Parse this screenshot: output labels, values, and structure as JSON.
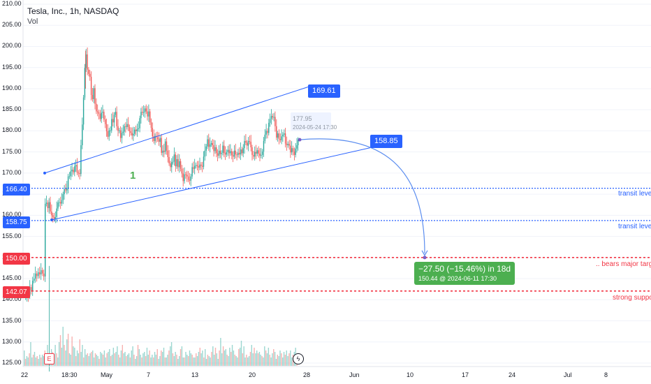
{
  "header": {
    "title": "Tesla, Inc., 1h, NASDAQ",
    "sub": "Vol"
  },
  "y_axis": {
    "labels": [
      "210.00",
      "205.00",
      "200.00",
      "195.00",
      "190.00",
      "185.00",
      "180.00",
      "175.00",
      "170.00",
      "165.00",
      "160.00",
      "155.00",
      "150.00",
      "145.00",
      "140.00",
      "135.00",
      "130.00",
      "125.00"
    ]
  },
  "price_tags": [
    {
      "text": "166.40",
      "color": "#2962ff"
    },
    {
      "text": "158.75",
      "color": "#2962ff"
    },
    {
      "text": "150.00",
      "color": "#f23645"
    },
    {
      "text": "142.07",
      "color": "#f23645"
    }
  ],
  "channel_tags": [
    {
      "text": "169.61"
    },
    {
      "text": "158.85"
    }
  ],
  "annotations": {
    "transit1": "transit level",
    "transit2": "transit level",
    "bears": ".. bears major target",
    "support": "strong support",
    "wave_label": "1"
  },
  "tooltip": {
    "price": "177.95",
    "time": "2024-05-24 17:30"
  },
  "projection": {
    "line1": "−27.50 (−15.46%) in 18d",
    "line2": "150.44 @ 2024-06-11  17:30"
  },
  "markers": {
    "earnings": "E"
  },
  "x_axis": {
    "labels": [
      "22",
      "18:30",
      "May",
      "7",
      "13",
      "20",
      "28",
      "Jun",
      "10",
      "17",
      "24",
      "Jul",
      "8"
    ]
  },
  "colors": {
    "up": "#26a69a",
    "down": "#ef5350",
    "accent": "#2962ff",
    "red": "#f23645",
    "green": "#4caf50"
  },
  "chart_data": {
    "type": "candlestick",
    "ylim": [
      125,
      210
    ],
    "close_path": [
      [
        64.0,
        162.7
      ],
      [
        65.8,
        163.0
      ],
      [
        67.7,
        161.7
      ],
      [
        69.5,
        163.1
      ],
      [
        71.3,
        160.9
      ],
      [
        73.2,
        160.0
      ],
      [
        75.0,
        159.6
      ],
      [
        76.8,
        159.1
      ],
      [
        78.6,
        159.6
      ],
      [
        80.5,
        161.6
      ],
      [
        82.3,
        163.0
      ],
      [
        84.1,
        163.1
      ],
      [
        86.0,
        162.8
      ],
      [
        87.8,
        163.6
      ],
      [
        89.6,
        165.0
      ],
      [
        91.4,
        166.2
      ],
      [
        93.3,
        165.9
      ],
      [
        95.1,
        166.5
      ],
      [
        96.9,
        169.2
      ],
      [
        98.8,
        169.3
      ],
      [
        100.6,
        170.4
      ],
      [
        102.4,
        170.8
      ],
      [
        104.3,
        170.2
      ],
      [
        106.1,
        171.6
      ],
      [
        107.9,
        171.9
      ],
      [
        109.7,
        170.1
      ],
      [
        111.6,
        170.0
      ],
      [
        113.4,
        169.8
      ],
      [
        115.2,
        176.6
      ],
      [
        117.1,
        181.5
      ],
      [
        118.9,
        187.9
      ],
      [
        120.7,
        194.9
      ],
      [
        122.5,
        198.1
      ],
      [
        124.4,
        194.5
      ],
      [
        126.2,
        193.5
      ],
      [
        128.0,
        192.8
      ],
      [
        129.9,
        188.5
      ],
      [
        131.7,
        187.5
      ],
      [
        133.5,
        190.1
      ],
      [
        135.3,
        186.4
      ],
      [
        137.2,
        184.6
      ],
      [
        139.0,
        184.4
      ],
      [
        140.8,
        184.0
      ],
      [
        142.7,
        182.8
      ],
      [
        144.5,
        184.3
      ],
      [
        146.3,
        184.5
      ],
      [
        148.1,
        182.7
      ],
      [
        150.0,
        181.6
      ],
      [
        151.8,
        179.9
      ],
      [
        153.6,
        178.6
      ],
      [
        155.5,
        180.1
      ],
      [
        157.3,
        180.1
      ],
      [
        159.1,
        182.8
      ],
      [
        161.0,
        182.0
      ],
      [
        162.8,
        183.8
      ],
      [
        164.6,
        184.5
      ],
      [
        166.4,
        181.1
      ],
      [
        168.3,
        180.0
      ],
      [
        170.1,
        180.1
      ],
      [
        171.9,
        178.3
      ],
      [
        173.8,
        179.5
      ],
      [
        175.6,
        179.8
      ],
      [
        177.4,
        181.1
      ],
      [
        179.2,
        180.9
      ],
      [
        181.1,
        181.6
      ],
      [
        182.9,
        180.9
      ],
      [
        184.7,
        179.9
      ],
      [
        186.6,
        179.5
      ],
      [
        188.4,
        178.9
      ],
      [
        190.2,
        179.3
      ],
      [
        192.0,
        180.3
      ],
      [
        193.9,
        179.9
      ],
      [
        195.7,
        180.4
      ],
      [
        197.5,
        180.6
      ],
      [
        199.4,
        183.0
      ],
      [
        201.2,
        184.5
      ],
      [
        203.0,
        184.3
      ],
      [
        204.8,
        184.4
      ],
      [
        206.7,
        185.3
      ],
      [
        208.5,
        184.6
      ],
      [
        210.3,
        183.4
      ],
      [
        212.2,
        184.6
      ],
      [
        214.0,
        182.0
      ],
      [
        215.8,
        180.7
      ],
      [
        217.6,
        178.7
      ],
      [
        219.5,
        177.6
      ],
      [
        221.3,
        178.8
      ],
      [
        223.1,
        178.5
      ],
      [
        225.0,
        178.0
      ],
      [
        226.8,
        177.4
      ],
      [
        228.6,
        178.3
      ],
      [
        230.5,
        174.8
      ],
      [
        232.3,
        175.3
      ],
      [
        234.1,
        175.0
      ],
      [
        235.9,
        177.5
      ],
      [
        237.8,
        175.3
      ],
      [
        239.6,
        173.8
      ],
      [
        241.4,
        172.3
      ],
      [
        243.3,
        171.4
      ],
      [
        245.1,
        172.6
      ],
      [
        246.9,
        172.7
      ],
      [
        248.7,
        174.4
      ],
      [
        250.6,
        171.6
      ],
      [
        252.4,
        173.3
      ],
      [
        254.2,
        171.4
      ],
      [
        256.1,
        172.8
      ],
      [
        257.9,
        171.0
      ],
      [
        259.7,
        169.9
      ],
      [
        261.5,
        168.1
      ],
      [
        263.4,
        169.7
      ],
      [
        265.2,
        169.6
      ],
      [
        267.0,
        169.2
      ],
      [
        268.9,
        168.4
      ],
      [
        270.7,
        168.2
      ],
      [
        272.5,
        169.2
      ],
      [
        274.4,
        171.4
      ],
      [
        276.2,
        171.0
      ],
      [
        278.0,
        171.7
      ],
      [
        279.8,
        171.9
      ],
      [
        281.7,
        171.6
      ],
      [
        283.5,
        171.3
      ],
      [
        285.3,
        172.0
      ],
      [
        287.2,
        171.7
      ],
      [
        289.0,
        171.5
      ],
      [
        290.8,
        173.9
      ],
      [
        292.6,
        175.3
      ],
      [
        294.5,
        176.3
      ],
      [
        296.3,
        178.0
      ],
      [
        298.1,
        176.2
      ],
      [
        300.0,
        176.8
      ],
      [
        301.8,
        177.1
      ],
      [
        303.6,
        176.6
      ],
      [
        305.4,
        175.2
      ],
      [
        307.3,
        176.1
      ],
      [
        309.1,
        174.7
      ],
      [
        310.9,
        174.1
      ],
      [
        312.8,
        175.3
      ],
      [
        314.6,
        174.5
      ],
      [
        316.4,
        174.8
      ],
      [
        318.3,
        176.5
      ],
      [
        320.1,
        174.7
      ],
      [
        321.9,
        174.4
      ],
      [
        323.7,
        175.0
      ],
      [
        325.6,
        175.5
      ],
      [
        327.4,
        174.7
      ],
      [
        329.2,
        175.2
      ],
      [
        331.1,
        174.2
      ],
      [
        332.9,
        173.9
      ],
      [
        334.7,
        175.3
      ],
      [
        336.5,
        174.4
      ],
      [
        338.4,
        174.3
      ],
      [
        340.2,
        174.8
      ],
      [
        342.0,
        174.4
      ],
      [
        343.9,
        175.6
      ],
      [
        345.7,
        174.7
      ],
      [
        347.5,
        175.9
      ],
      [
        349.3,
        177.6
      ],
      [
        351.2,
        177.2
      ],
      [
        353.0,
        176.5
      ],
      [
        354.8,
        177.6
      ],
      [
        356.7,
        177.4
      ],
      [
        358.5,
        176.1
      ],
      [
        360.3,
        174.3
      ],
      [
        362.2,
        173.9
      ],
      [
        364.0,
        175.0
      ],
      [
        365.8,
        174.6
      ],
      [
        367.6,
        175.4
      ],
      [
        369.5,
        174.6
      ],
      [
        371.3,
        174.1
      ],
      [
        373.1,
        174.3
      ],
      [
        375.0,
        175.1
      ],
      [
        376.8,
        177.6
      ],
      [
        378.6,
        179.1
      ],
      [
        380.4,
        180.0
      ],
      [
        382.3,
        179.5
      ],
      [
        384.1,
        181.9
      ],
      [
        385.9,
        182.8
      ],
      [
        387.8,
        183.5
      ],
      [
        389.6,
        183.2
      ],
      [
        391.4,
        183.3
      ],
      [
        393.2,
        181.1
      ],
      [
        395.1,
        178.4
      ],
      [
        396.9,
        179.4
      ],
      [
        398.7,
        178.1
      ],
      [
        400.6,
        177.8
      ],
      [
        402.4,
        178.7
      ],
      [
        404.2,
        179.1
      ],
      [
        406.1,
        179.4
      ],
      [
        407.9,
        177.0
      ],
      [
        409.7,
        176.6
      ],
      [
        411.5,
        176.9
      ],
      [
        413.4,
        176.5
      ],
      [
        415.2,
        174.9
      ],
      [
        417.0,
        175.9
      ],
      [
        418.9,
        175.1
      ],
      [
        420.7,
        174.3
      ],
      [
        422.5,
        175.8
      ],
      [
        424.3,
        176.6
      ],
      [
        426.0,
        177.9
      ]
    ],
    "volume_heights": [
      22,
      10,
      14,
      12,
      18,
      34,
      12,
      16,
      20,
      12,
      14,
      10,
      16,
      12,
      16,
      14,
      22,
      14,
      30,
      18,
      12,
      24,
      20,
      14,
      30,
      18,
      12,
      34,
      44,
      26,
      56,
      30,
      22,
      38,
      46,
      18,
      16,
      42,
      28,
      26,
      14,
      22,
      18,
      38,
      20,
      30,
      12,
      24,
      16,
      18,
      14,
      18,
      20,
      22,
      12,
      18,
      16,
      14,
      10,
      20,
      18,
      16,
      22,
      12,
      18,
      20,
      24,
      14,
      16,
      26,
      18,
      20,
      28,
      16,
      12,
      22,
      30,
      18,
      20,
      14,
      16,
      18,
      12,
      22,
      28,
      16,
      10,
      14,
      30,
      24,
      16,
      12,
      18,
      20,
      14,
      26,
      16,
      22,
      12,
      16,
      12,
      20,
      16,
      24,
      10,
      14,
      22,
      20,
      26,
      12,
      12,
      16,
      22,
      28,
      34,
      18,
      14,
      20,
      16,
      10,
      14,
      24,
      28,
      12,
      12,
      20,
      16,
      14,
      22,
      18,
      16,
      12,
      12,
      18,
      14,
      20,
      26,
      18,
      22,
      12,
      24,
      10,
      16,
      14,
      12,
      20,
      28,
      16,
      26,
      18,
      10,
      22,
      40,
      18,
      28,
      22,
      24,
      16,
      14,
      26,
      20,
      30,
      22,
      16,
      14,
      12,
      24,
      26,
      36,
      18,
      28,
      12,
      16,
      12,
      14,
      20,
      30,
      18,
      26,
      18,
      22,
      18,
      20,
      16,
      14,
      12,
      28,
      22,
      18,
      26,
      16,
      12,
      18,
      24,
      20,
      10,
      16,
      14,
      22,
      18,
      12,
      20,
      16,
      22,
      14,
      18,
      22,
      12,
      16,
      20,
      26,
      14
    ],
    "channel_upper": {
      "from": [
        64,
        170.0
      ],
      "to": [
        441,
        190.4
      ]
    },
    "channel_lower": {
      "from": [
        74,
        158.9
      ],
      "to": [
        530,
        176.0
      ]
    },
    "levels": [
      166.4,
      158.75,
      150.0,
      142.07
    ],
    "projection_target": 150.0
  }
}
